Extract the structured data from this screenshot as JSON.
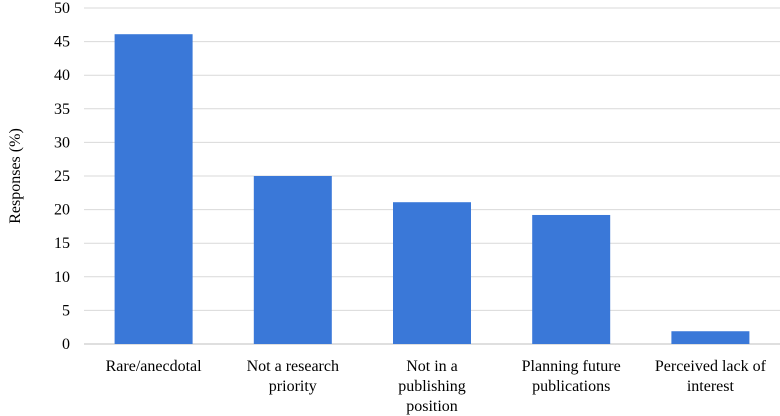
{
  "chart_data": {
    "type": "bar",
    "categories": [
      [
        "Rare/anecdotal"
      ],
      [
        "Not a research",
        "priority"
      ],
      [
        "Not in a",
        "publishing",
        "position"
      ],
      [
        "Planning future",
        "publications"
      ],
      [
        "Perceived lack of",
        "interest"
      ]
    ],
    "values": [
      46.1,
      25.0,
      21.1,
      19.2,
      1.9
    ],
    "title": "",
    "xlabel": "",
    "ylabel": "Responses (%)",
    "ylim": [
      0,
      50
    ],
    "yticks": [
      0,
      5,
      10,
      15,
      20,
      25,
      30,
      35,
      40,
      45,
      50
    ],
    "grid": true,
    "bar_color": "#3a78d8",
    "legend": "none"
  }
}
